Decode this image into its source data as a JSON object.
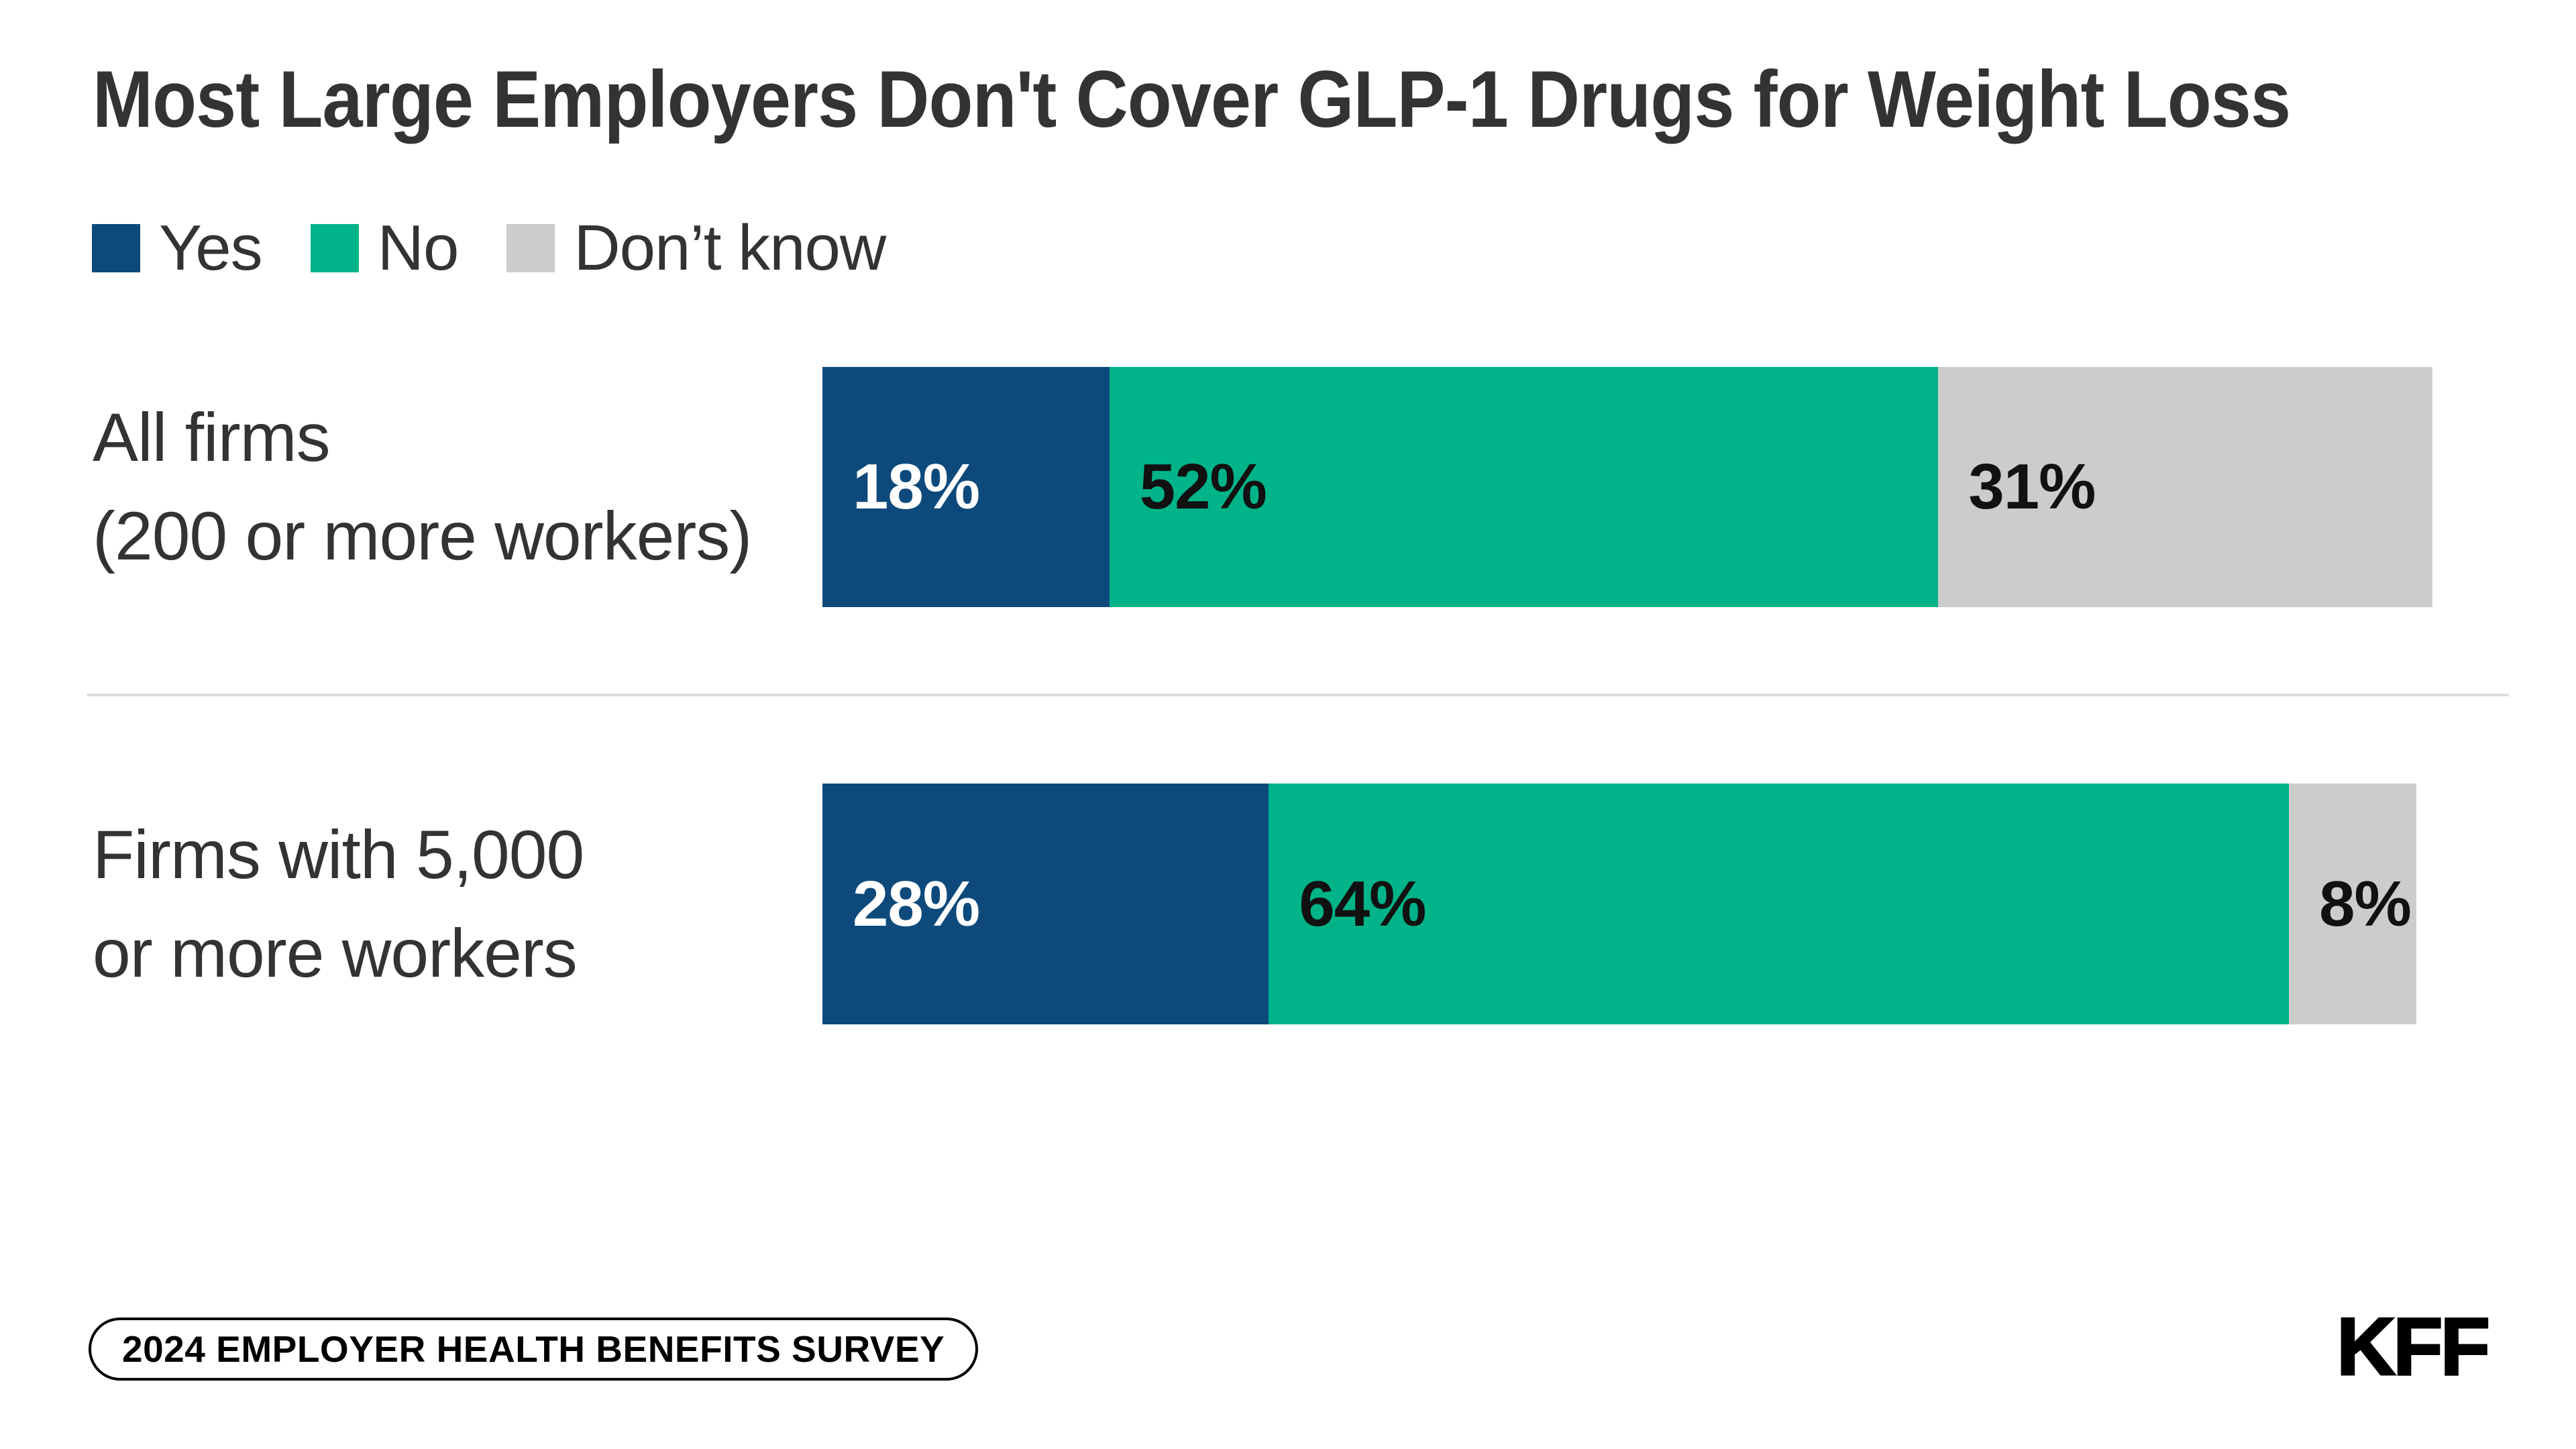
{
  "title": "Most Large Employers Don't Cover GLP-1 Drugs for Weight Loss",
  "legend": [
    {
      "label": "Yes",
      "color": "#0D4A7B"
    },
    {
      "label": "No",
      "color": "#00B388"
    },
    {
      "label": "Don’t know",
      "color": "#CCCCCC"
    }
  ],
  "rows": [
    {
      "label_line1": "All firms",
      "label_line2": "(200 or more workers)"
    },
    {
      "label_line1": "Firms with 5,000",
      "label_line2": "or more workers"
    }
  ],
  "chart_data": {
    "type": "bar",
    "orientation": "horizontal-stacked",
    "unit": "percent",
    "title": "Most Large Employers Don't Cover GLP-1 Drugs for Weight Loss",
    "categories": [
      "All firms (200 or more workers)",
      "Firms with 5,000 or more workers"
    ],
    "series": [
      {
        "name": "Yes",
        "color": "#0D4A7B",
        "label_color": "#FFFFFF",
        "values": [
          18,
          28
        ]
      },
      {
        "name": "No",
        "color": "#00B388",
        "label_color": "#111111",
        "values": [
          52,
          64
        ]
      },
      {
        "name": "Don’t know",
        "color": "#CCCCCC",
        "label_color": "#111111",
        "values": [
          31,
          8
        ]
      }
    ],
    "value_suffix": "%",
    "axis_scale_points": 101,
    "grid": false,
    "legend_position": "top-left"
  },
  "footer": {
    "badge": "2024 EMPLOYER HEALTH BENEFITS SURVEY",
    "logo": "KFF"
  }
}
